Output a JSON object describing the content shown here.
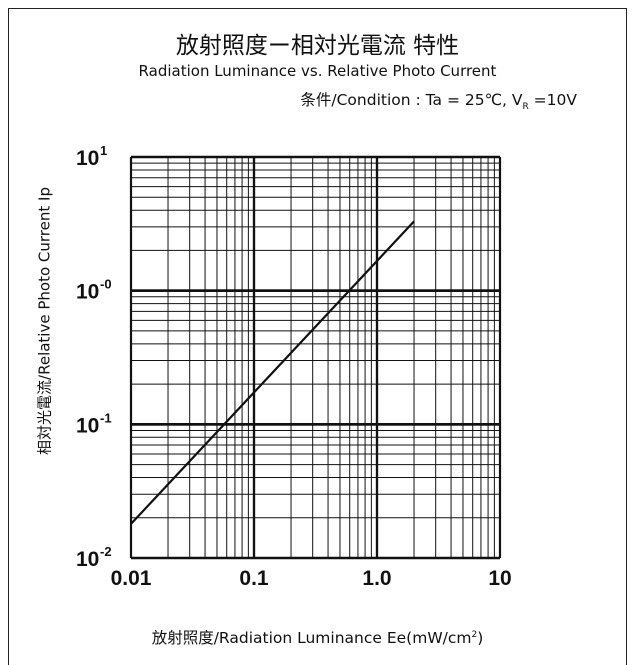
{
  "chart_data": {
    "type": "line",
    "title": "放射照度ー相対光電流 特性",
    "subtitle": "Radiation Luminance vs. Relative Photo Current",
    "condition": {
      "prefix": "条件/Condition : Ta = 25℃, V",
      "sub": "R",
      "suffix": " =10V"
    },
    "xlabel": {
      "main": "放射照度/Radiation Luminance  Ee(mW/cm",
      "sup": "2",
      "end": ")"
    },
    "ylabel": "相対光電流/Relative Photo Current Ip",
    "x_scale": "log",
    "y_scale": "log",
    "xlim": [
      0.01,
      10
    ],
    "ylim": [
      0.01,
      10
    ],
    "x_ticks": [
      {
        "value": 0.01,
        "label": "0.01"
      },
      {
        "value": 0.1,
        "label": "0.1"
      },
      {
        "value": 1,
        "label": "1.0"
      },
      {
        "value": 10,
        "label": "10"
      }
    ],
    "y_ticks": [
      {
        "value": 10,
        "base": "10",
        "exp": "1"
      },
      {
        "value": 1,
        "base": "10",
        "exp": "-0"
      },
      {
        "value": 0.1,
        "base": "10",
        "exp": "-1"
      },
      {
        "value": 0.01,
        "base": "10",
        "exp": "-2"
      }
    ],
    "grid": true,
    "series": [
      {
        "values": [
          {
            "x": 0.01,
            "y": 0.018
          },
          {
            "x": 2.0,
            "y": 3.3
          }
        ]
      }
    ]
  }
}
